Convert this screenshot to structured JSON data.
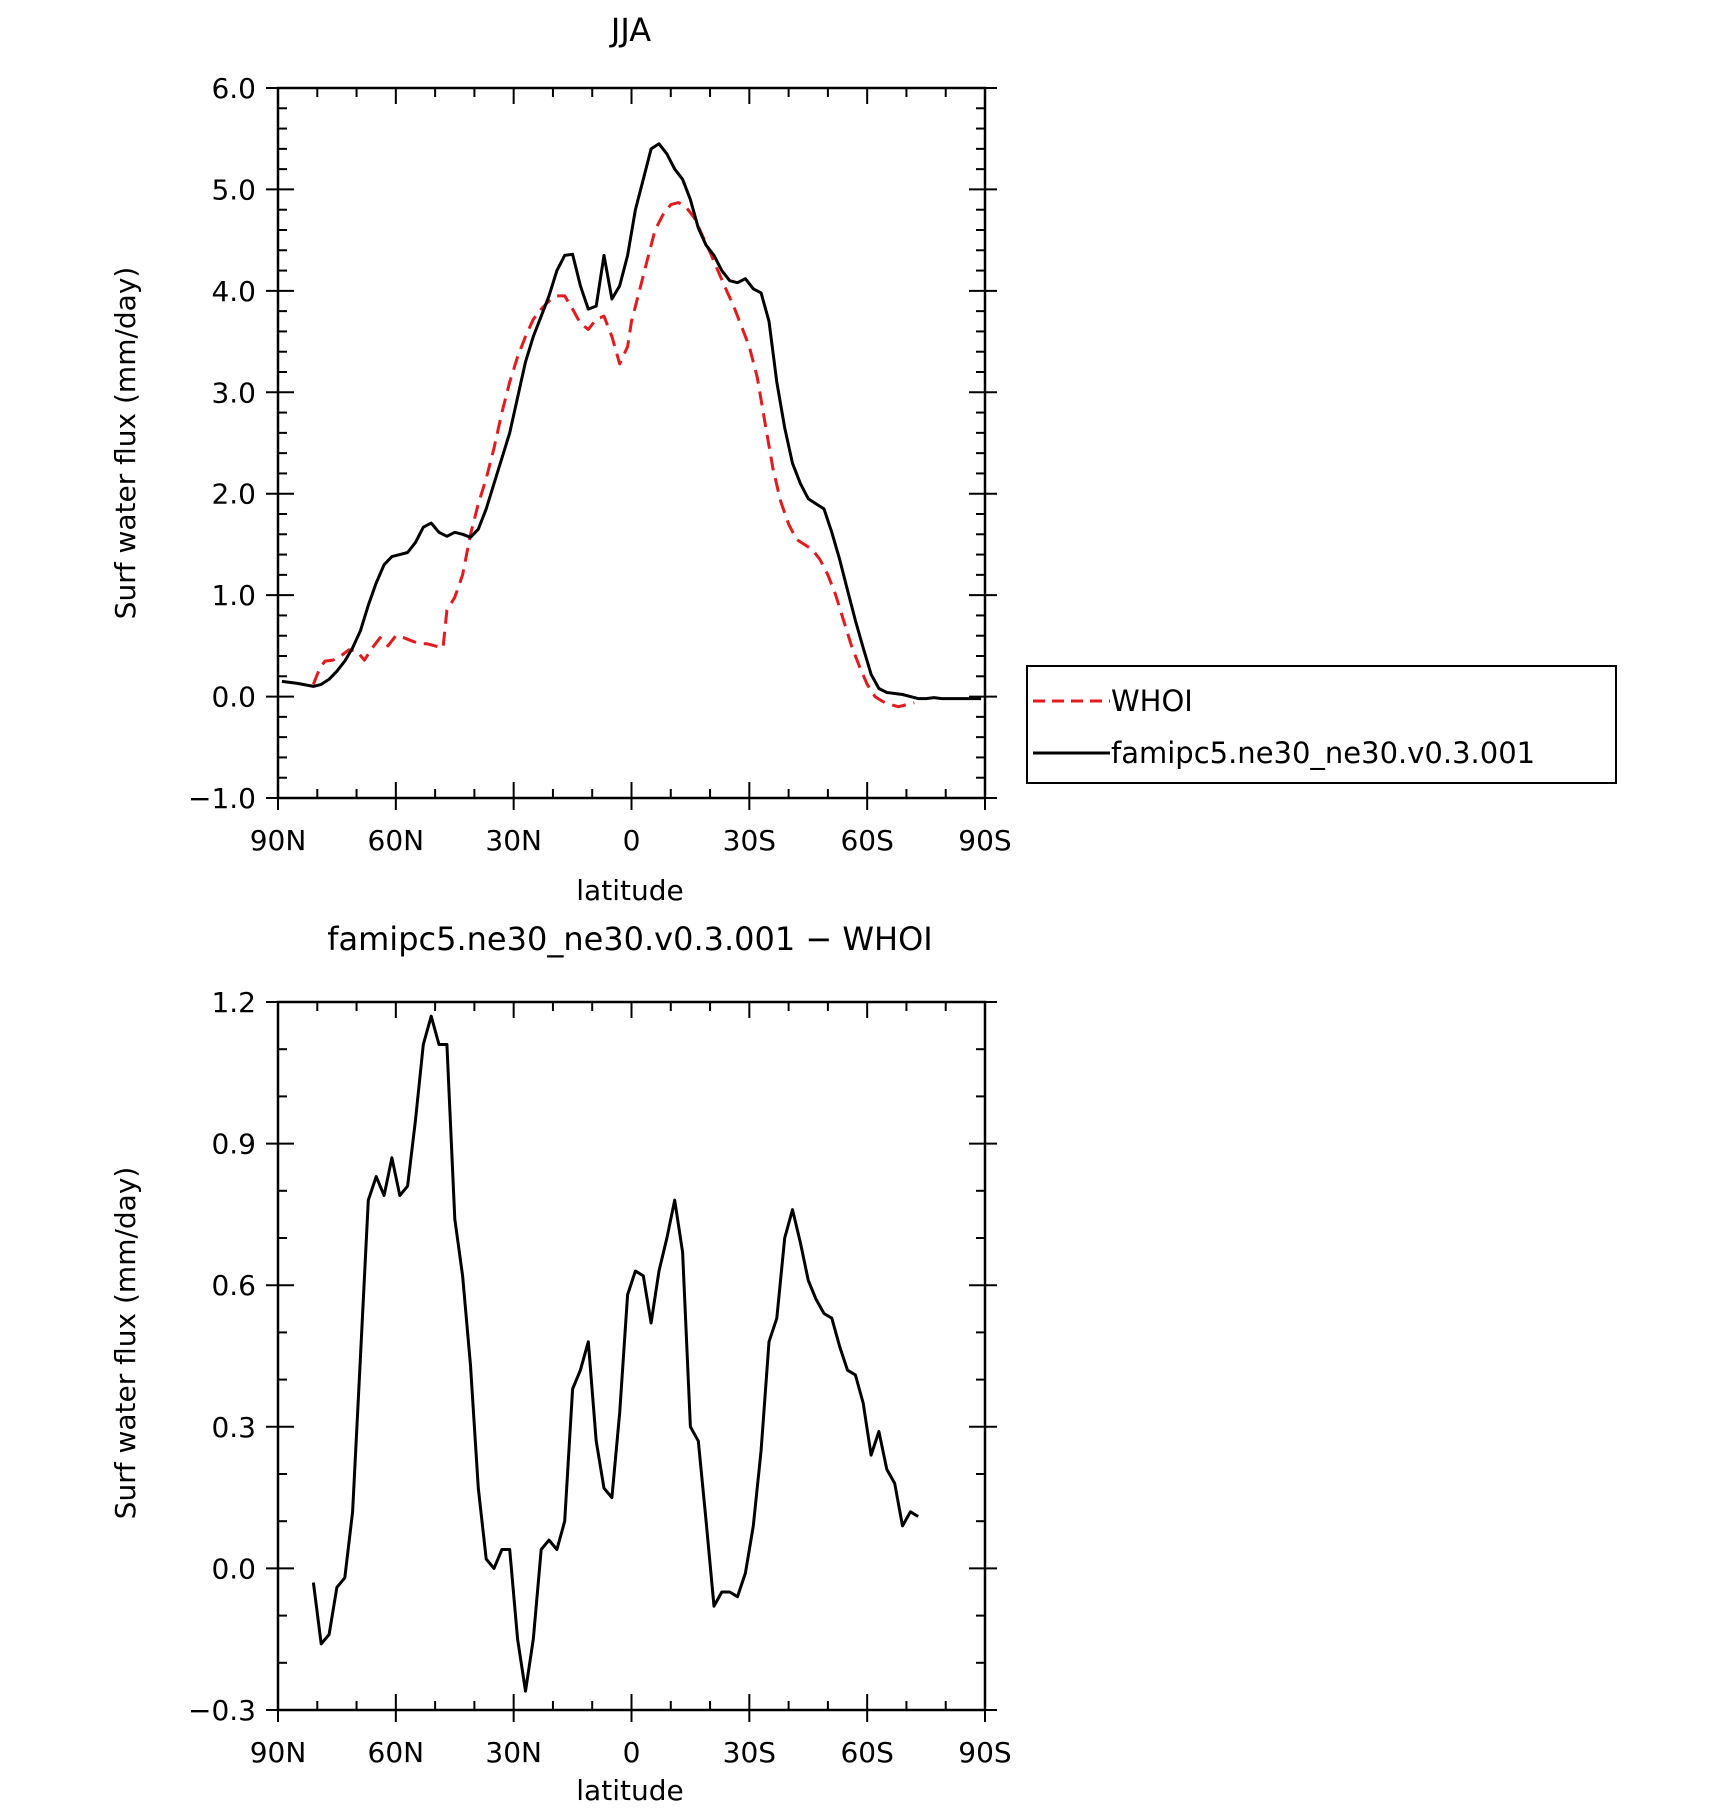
{
  "chart_data": [
    {
      "type": "line",
      "title": "JJA",
      "xlabel": "latitude",
      "ylabel": "Surf water flux (mm/day)",
      "ylim": [
        -1.0,
        6.0
      ],
      "xlim": [
        90,
        -90
      ],
      "x_direction": "90N on left to 90S on right (latitude, south negative)",
      "yticks": [
        "−1.0",
        "0.0",
        "1.0",
        "2.0",
        "3.0",
        "4.0",
        "5.0",
        "6.0"
      ],
      "ytick_values": [
        -1,
        0,
        1,
        2,
        3,
        4,
        5,
        6
      ],
      "xticks": [
        "90N",
        "60N",
        "30N",
        "0",
        "30S",
        "60S",
        "90S"
      ],
      "xtick_values": [
        90,
        60,
        30,
        0,
        -30,
        -60,
        -90
      ],
      "grid": false,
      "legend_position": "right of plot, middle",
      "series": [
        {
          "name": "WHOI",
          "color": "#e41a1c",
          "dash": "dashed",
          "x": [
            81,
            80,
            79,
            78,
            76,
            74,
            72,
            70,
            68,
            66,
            64,
            62,
            60,
            58,
            56,
            54,
            52,
            50,
            48,
            47,
            45,
            43,
            41,
            39,
            37,
            35,
            33,
            31,
            29,
            27,
            25,
            23,
            21,
            19,
            17,
            15,
            13,
            11,
            9,
            7,
            5,
            3,
            1,
            0,
            -2,
            -4,
            -6,
            -8,
            -10,
            -12,
            -14,
            -16,
            -18,
            -20,
            -22,
            -24,
            -26,
            -28,
            -30,
            -32,
            -34,
            -36,
            -38,
            -40,
            -42,
            -44,
            -46,
            -48,
            -50,
            -52,
            -54,
            -56,
            -58,
            -60,
            -62,
            -64,
            -66,
            -68,
            -70,
            -72
          ],
          "y": [
            0.12,
            0.22,
            0.3,
            0.35,
            0.36,
            0.4,
            0.46,
            0.45,
            0.36,
            0.48,
            0.58,
            0.5,
            0.6,
            0.58,
            0.55,
            0.52,
            0.52,
            0.5,
            0.48,
            0.85,
            0.98,
            1.2,
            1.6,
            1.9,
            2.15,
            2.45,
            2.8,
            3.1,
            3.35,
            3.55,
            3.72,
            3.82,
            3.9,
            3.95,
            3.95,
            3.82,
            3.68,
            3.62,
            3.72,
            3.75,
            3.55,
            3.28,
            3.45,
            3.7,
            4.0,
            4.3,
            4.6,
            4.75,
            4.85,
            4.87,
            4.82,
            4.72,
            4.55,
            4.38,
            4.2,
            4.02,
            3.85,
            3.65,
            3.45,
            3.15,
            2.7,
            2.25,
            1.92,
            1.7,
            1.55,
            1.5,
            1.45,
            1.35,
            1.2,
            1.0,
            0.75,
            0.5,
            0.3,
            0.12,
            0.0,
            -0.05,
            -0.08,
            -0.1,
            -0.08,
            -0.06
          ]
        },
        {
          "name": "famipc5.ne30_ne30.v0.3.001",
          "color": "#000000",
          "dash": "solid",
          "x": [
            89,
            85,
            81,
            79,
            77,
            75,
            73,
            71,
            69,
            67,
            65,
            63,
            61,
            59,
            57,
            55,
            53,
            51,
            49,
            47,
            45,
            43,
            41,
            39,
            37,
            35,
            33,
            31,
            29,
            27,
            25,
            23,
            21,
            19,
            17,
            15,
            13,
            11,
            9,
            7,
            5,
            3,
            1,
            -1,
            -3,
            -5,
            -7,
            -9,
            -11,
            -13,
            -15,
            -17,
            -19,
            -21,
            -23,
            -25,
            -27,
            -29,
            -31,
            -33,
            -35,
            -37,
            -39,
            -41,
            -43,
            -45,
            -47,
            -49,
            -51,
            -53,
            -55,
            -57,
            -59,
            -61,
            -63,
            -65,
            -67,
            -69,
            -71,
            -73,
            -75,
            -77,
            -79,
            -81,
            -83,
            -85,
            -87,
            -89
          ],
          "y": [
            0.15,
            0.13,
            0.1,
            0.12,
            0.17,
            0.25,
            0.35,
            0.48,
            0.65,
            0.9,
            1.12,
            1.3,
            1.38,
            1.4,
            1.42,
            1.52,
            1.67,
            1.71,
            1.62,
            1.58,
            1.62,
            1.6,
            1.57,
            1.65,
            1.85,
            2.1,
            2.35,
            2.6,
            2.95,
            3.3,
            3.55,
            3.75,
            3.95,
            4.2,
            4.35,
            4.36,
            4.05,
            3.82,
            3.85,
            4.35,
            3.92,
            4.05,
            4.35,
            4.8,
            5.1,
            5.4,
            5.45,
            5.35,
            5.2,
            5.1,
            4.9,
            4.62,
            4.45,
            4.35,
            4.2,
            4.1,
            4.08,
            4.12,
            4.02,
            3.98,
            3.7,
            3.1,
            2.65,
            2.3,
            2.1,
            1.95,
            1.9,
            1.85,
            1.62,
            1.35,
            1.05,
            0.75,
            0.48,
            0.22,
            0.08,
            0.04,
            0.03,
            0.02,
            0.0,
            -0.02,
            -0.02,
            -0.01,
            -0.02,
            -0.02,
            -0.02,
            -0.02,
            -0.02,
            -0.02
          ]
        }
      ],
      "legend": {
        "entries": [
          "WHOI",
          "famipc5.ne30_ne30.v0.3.001"
        ]
      }
    },
    {
      "type": "line",
      "title": "famipc5.ne30_ne30.v0.3.001 − WHOI",
      "xlabel": "latitude",
      "ylabel": "Surf water flux (mm/day)",
      "ylim": [
        -0.3,
        1.2
      ],
      "xlim": [
        90,
        -90
      ],
      "yticks": [
        "−0.3",
        "0.0",
        "0.3",
        "0.6",
        "0.9",
        "1.2"
      ],
      "ytick_values": [
        -0.3,
        0.0,
        0.3,
        0.6,
        0.9,
        1.2
      ],
      "xticks": [
        "90N",
        "60N",
        "30N",
        "0",
        "30S",
        "60S",
        "90S"
      ],
      "xtick_values": [
        90,
        60,
        30,
        0,
        -30,
        -60,
        -90
      ],
      "grid": false,
      "series": [
        {
          "name": "",
          "color": "#000000",
          "dash": "solid",
          "x": [
            81,
            79,
            77,
            75,
            73,
            71,
            69,
            67,
            65,
            63,
            61,
            59,
            57,
            55,
            53,
            51,
            49,
            47,
            45,
            43,
            41,
            39,
            37,
            35,
            33,
            31,
            29,
            27,
            25,
            23,
            21,
            19,
            17,
            15,
            13,
            11,
            9,
            7,
            5,
            3,
            1,
            -1,
            -3,
            -5,
            -7,
            -9,
            -11,
            -13,
            -15,
            -17,
            -19,
            -21,
            -23,
            -25,
            -27,
            -29,
            -31,
            -33,
            -35,
            -37,
            -39,
            -41,
            -43,
            -45,
            -47,
            -49,
            -51,
            -53,
            -55,
            -57,
            -59,
            -61,
            -63,
            -65,
            -67,
            -69,
            -71,
            -73
          ],
          "y": [
            -0.03,
            -0.16,
            -0.14,
            -0.04,
            -0.02,
            0.12,
            0.45,
            0.78,
            0.83,
            0.79,
            0.87,
            0.79,
            0.81,
            0.95,
            1.11,
            1.17,
            1.11,
            1.11,
            0.74,
            0.62,
            0.43,
            0.17,
            0.02,
            0.0,
            0.04,
            0.04,
            -0.15,
            -0.26,
            -0.15,
            0.04,
            0.06,
            0.04,
            0.1,
            0.38,
            0.42,
            0.48,
            0.27,
            0.17,
            0.15,
            0.33,
            0.58,
            0.63,
            0.62,
            0.52,
            0.63,
            0.7,
            0.78,
            0.67,
            0.3,
            0.27,
            0.1,
            -0.08,
            -0.05,
            -0.05,
            -0.06,
            -0.01,
            0.09,
            0.25,
            0.48,
            0.53,
            0.7,
            0.76,
            0.69,
            0.61,
            0.57,
            0.54,
            0.53,
            0.47,
            0.42,
            0.41,
            0.35,
            0.24,
            0.29,
            0.21,
            0.18,
            0.09,
            0.12,
            0.11
          ]
        }
      ]
    }
  ]
}
